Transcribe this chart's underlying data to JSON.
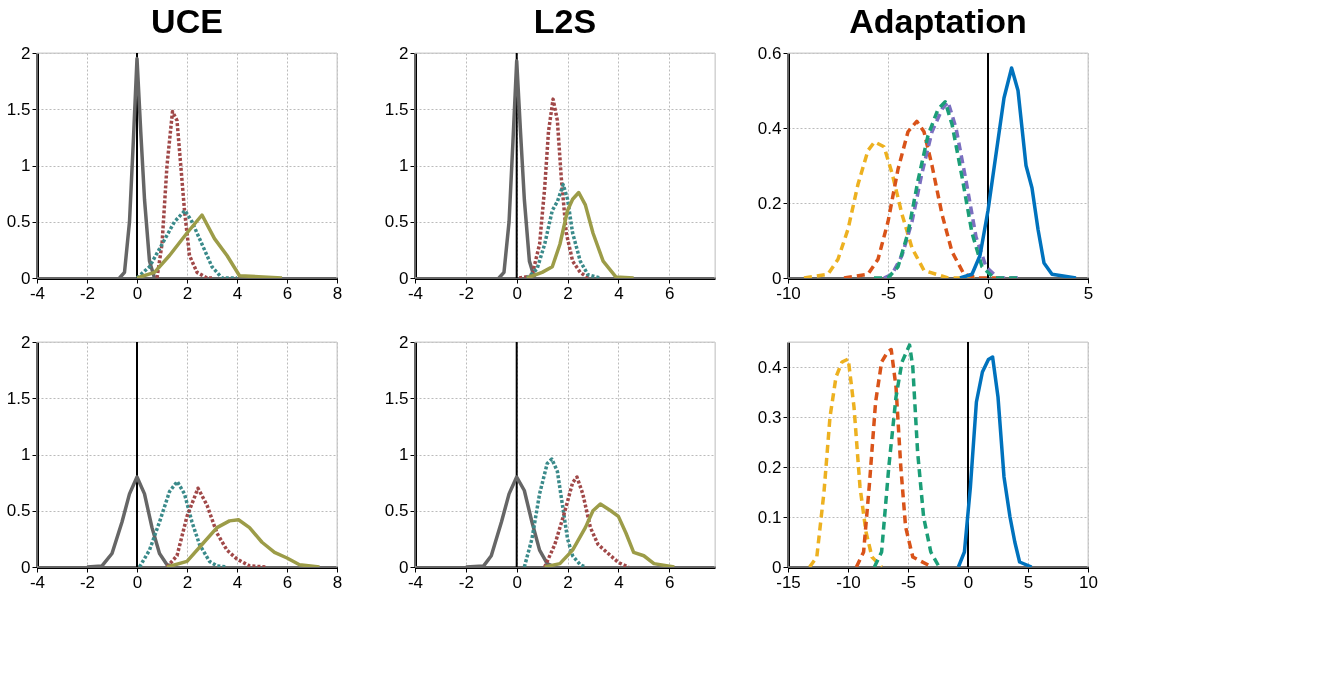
{
  "chart_data": [
    {
      "type": "line",
      "title": "UCE",
      "xlim": [
        -4,
        8
      ],
      "xticks": [
        -4,
        -2,
        0,
        2,
        4,
        6,
        8
      ],
      "ylim": [
        0,
        2
      ],
      "yticks": [
        0,
        0.5,
        1,
        1.5,
        2
      ],
      "grid": true,
      "ref_lines": [
        {
          "axis": "x",
          "value": 0,
          "color": "#000000"
        }
      ],
      "series": [
        {
          "color": "#666666",
          "line_style": "solid",
          "x": [
            -0.7,
            -0.5,
            -0.3,
            -0.15,
            0,
            0.15,
            0.3,
            0.5,
            0.7
          ],
          "values": [
            0,
            0.05,
            0.5,
            1.2,
            1.95,
            1.3,
            0.7,
            0.15,
            0
          ]
        },
        {
          "color": "#a04848",
          "line_style": "dotted",
          "x": [
            0.8,
            1.0,
            1.2,
            1.42,
            1.6,
            1.75,
            1.9,
            2.1,
            2.4,
            2.8,
            3.0
          ],
          "values": [
            0,
            0.3,
            1.0,
            1.48,
            1.4,
            1.0,
            0.6,
            0.2,
            0.05,
            0,
            0
          ]
        },
        {
          "color": "#3a8a8a",
          "line_style": "dotted",
          "x": [
            0,
            0.5,
            1,
            1.5,
            1.92,
            2.2,
            2.6,
            3,
            3.4,
            4
          ],
          "values": [
            0,
            0.1,
            0.3,
            0.5,
            0.6,
            0.5,
            0.3,
            0.1,
            0,
            0
          ]
        },
        {
          "color": "#9c9c48",
          "line_style": "solid",
          "x": [
            0,
            0.7,
            1.3,
            2,
            2.6,
            3.1,
            3.6,
            4.1,
            5.8
          ],
          "values": [
            0,
            0.05,
            0.2,
            0.4,
            0.56,
            0.35,
            0.2,
            0.02,
            0
          ]
        }
      ]
    },
    {
      "type": "line",
      "title": "L2S",
      "xlim": [
        -4,
        7.8
      ],
      "xticks": [
        -4,
        -2,
        0,
        2,
        4,
        6
      ],
      "ylim": [
        0,
        2
      ],
      "yticks": [
        0,
        0.5,
        1,
        1.5,
        2
      ],
      "grid": true,
      "ref_lines": [
        {
          "axis": "x",
          "value": 0,
          "color": "#000000"
        }
      ],
      "series": [
        {
          "color": "#666666",
          "line_style": "solid",
          "x": [
            -0.7,
            -0.5,
            -0.3,
            -0.15,
            0,
            0.15,
            0.3,
            0.5,
            0.7
          ],
          "values": [
            0,
            0.05,
            0.5,
            1.2,
            1.93,
            1.3,
            0.7,
            0.15,
            0
          ]
        },
        {
          "color": "#a04848",
          "line_style": "dotted",
          "x": [
            0.1,
            0.6,
            0.9,
            1.1,
            1.25,
            1.43,
            1.6,
            1.75,
            1.95,
            2.2,
            2.5,
            2.8
          ],
          "values": [
            0,
            0.02,
            0.3,
            0.8,
            1.3,
            1.59,
            1.4,
            0.9,
            0.4,
            0.15,
            0.05,
            0
          ]
        },
        {
          "color": "#3a8a8a",
          "line_style": "dotted",
          "x": [
            0.4,
            0.8,
            1.1,
            1.4,
            1.6,
            1.83,
            2.0,
            2.2,
            2.5,
            2.8,
            3.3
          ],
          "values": [
            0,
            0.08,
            0.3,
            0.6,
            0.68,
            0.83,
            0.7,
            0.4,
            0.15,
            0.03,
            0
          ]
        },
        {
          "color": "#9c9c48",
          "line_style": "solid",
          "x": [
            0.4,
            1.0,
            1.4,
            1.7,
            2.0,
            2.2,
            2.44,
            2.7,
            3.0,
            3.4,
            3.9,
            4.6
          ],
          "values": [
            0,
            0.05,
            0.1,
            0.3,
            0.6,
            0.7,
            0.76,
            0.65,
            0.4,
            0.15,
            0.01,
            0
          ]
        }
      ]
    },
    {
      "type": "line",
      "title": "Adaptation",
      "xlim": [
        -10,
        5
      ],
      "xticks": [
        -10,
        -5,
        0,
        5
      ],
      "ylim": [
        0,
        0.6
      ],
      "yticks": [
        0,
        0.2,
        0.4,
        0.6
      ],
      "grid": true,
      "ref_lines": [
        {
          "axis": "x",
          "value": 0,
          "color": "#000000"
        }
      ],
      "series": [
        {
          "color": "#edb120",
          "line_style": "dashed",
          "x": [
            -9.2,
            -8,
            -7.5,
            -7,
            -6.5,
            -6,
            -5.67,
            -5.2,
            -4.8,
            -4.3,
            -3.8,
            -3.2,
            -2,
            -0.5
          ],
          "values": [
            0,
            0.01,
            0.05,
            0.13,
            0.25,
            0.34,
            0.363,
            0.35,
            0.28,
            0.17,
            0.08,
            0.02,
            0,
            0
          ]
        },
        {
          "color": "#d95319",
          "line_style": "dashed",
          "x": [
            -7.2,
            -6,
            -5.5,
            -5,
            -4.5,
            -4,
            -3.56,
            -3.2,
            -2.8,
            -2.3,
            -1.8,
            -1.2,
            -0.5,
            0.7
          ],
          "values": [
            0,
            0.01,
            0.05,
            0.15,
            0.29,
            0.39,
            0.418,
            0.39,
            0.3,
            0.17,
            0.07,
            0.01,
            0,
            0
          ]
        },
        {
          "color": "#7b6fc0",
          "line_style": "dashed",
          "x": [
            -5.2,
            -4.8,
            -4.3,
            -3.8,
            -3.3,
            -2.8,
            -2.3,
            -2.0,
            -1.6,
            -1.1,
            -0.6,
            -0.1,
            0.5,
            1.5
          ],
          "values": [
            0,
            0.01,
            0.06,
            0.15,
            0.28,
            0.39,
            0.45,
            0.47,
            0.4,
            0.26,
            0.11,
            0.03,
            0,
            0
          ]
        },
        {
          "color": "#1b9e77",
          "line_style": "dashed",
          "x": [
            -5.7,
            -5,
            -4.5,
            -4,
            -3.5,
            -3,
            -2.5,
            -2.14,
            -1.8,
            -1.3,
            -0.8,
            -0.3,
            0.3,
            1.5
          ],
          "values": [
            0,
            0,
            0.03,
            0.12,
            0.26,
            0.38,
            0.45,
            0.47,
            0.41,
            0.27,
            0.12,
            0.03,
            0,
            0
          ]
        },
        {
          "color": "#0072bd",
          "line_style": "solid",
          "x": [
            -1.4,
            -0.8,
            -0.4,
            0,
            0.4,
            0.8,
            1.18,
            1.5,
            1.9,
            2.2,
            2.5,
            2.8,
            3.2,
            4.4
          ],
          "values": [
            0,
            0.01,
            0.06,
            0.18,
            0.33,
            0.48,
            0.56,
            0.5,
            0.3,
            0.24,
            0.13,
            0.04,
            0.01,
            0
          ]
        }
      ]
    },
    {
      "type": "line",
      "xlim": [
        -4,
        8
      ],
      "xticks": [
        -4,
        -2,
        0,
        2,
        4,
        6,
        8
      ],
      "ylim": [
        0,
        2
      ],
      "yticks": [
        0,
        0.5,
        1,
        1.5,
        2
      ],
      "grid": true,
      "ref_lines": [
        {
          "axis": "x",
          "value": 0,
          "color": "#000000"
        }
      ],
      "series": [
        {
          "color": "#666666",
          "line_style": "solid",
          "x": [
            -2,
            -1.4,
            -1,
            -0.6,
            -0.3,
            0,
            0.3,
            0.6,
            0.9,
            1.2,
            1.6
          ],
          "values": [
            0,
            0.01,
            0.12,
            0.4,
            0.65,
            0.8,
            0.65,
            0.35,
            0.12,
            0.02,
            0
          ]
        },
        {
          "color": "#3a8a8a",
          "line_style": "dotted",
          "x": [
            0.1,
            0.5,
            0.9,
            1.3,
            1.61,
            1.9,
            2.2,
            2.5,
            2.9,
            3.2,
            3.6
          ],
          "values": [
            0,
            0.15,
            0.4,
            0.67,
            0.76,
            0.65,
            0.4,
            0.2,
            0.05,
            0.01,
            0
          ]
        },
        {
          "color": "#a04848",
          "line_style": "dotted",
          "x": [
            1.2,
            1.6,
            2.0,
            2.44,
            2.8,
            3.2,
            3.6,
            4.0,
            4.5,
            5.2
          ],
          "values": [
            0,
            0.1,
            0.45,
            0.7,
            0.55,
            0.3,
            0.15,
            0.07,
            0.01,
            0
          ]
        },
        {
          "color": "#9c9c48",
          "line_style": "solid",
          "x": [
            1.2,
            2,
            2.6,
            3.2,
            3.7,
            4.06,
            4.5,
            5,
            5.5,
            6,
            6.5,
            7.3
          ],
          "values": [
            0,
            0.05,
            0.2,
            0.35,
            0.41,
            0.42,
            0.35,
            0.22,
            0.13,
            0.08,
            0.02,
            0
          ]
        }
      ]
    },
    {
      "type": "line",
      "xlim": [
        -4,
        7.8
      ],
      "xticks": [
        -4,
        -2,
        0,
        2,
        4,
        6
      ],
      "ylim": [
        0,
        2
      ],
      "yticks": [
        0,
        0.5,
        1,
        1.5,
        2
      ],
      "grid": true,
      "ref_lines": [
        {
          "axis": "x",
          "value": 0,
          "color": "#000000"
        }
      ],
      "series": [
        {
          "color": "#666666",
          "line_style": "solid",
          "x": [
            -2,
            -1.3,
            -1,
            -0.6,
            -0.3,
            0,
            0.3,
            0.6,
            0.9,
            1.2,
            1.5
          ],
          "values": [
            0,
            0.01,
            0.1,
            0.4,
            0.65,
            0.8,
            0.68,
            0.4,
            0.15,
            0.03,
            0
          ]
        },
        {
          "color": "#3a8a8a",
          "line_style": "dotted",
          "x": [
            0.3,
            0.6,
            0.9,
            1.2,
            1.38,
            1.6,
            1.8,
            2.0,
            2.2,
            2.5,
            2.7
          ],
          "values": [
            0,
            0.25,
            0.65,
            0.92,
            0.96,
            0.85,
            0.55,
            0.25,
            0.1,
            0.02,
            0
          ]
        },
        {
          "color": "#a04848",
          "line_style": "dotted",
          "x": [
            1.1,
            1.5,
            1.9,
            2.2,
            2.37,
            2.6,
            2.9,
            3.2,
            3.6,
            4.0,
            4.4
          ],
          "values": [
            0,
            0.2,
            0.5,
            0.75,
            0.8,
            0.65,
            0.35,
            0.2,
            0.12,
            0.04,
            0
          ]
        },
        {
          "color": "#9c9c48",
          "line_style": "solid",
          "x": [
            1.1,
            1.7,
            2.2,
            2.7,
            3.0,
            3.29,
            3.7,
            4.0,
            4.3,
            4.6,
            5.0,
            5.4,
            6.2
          ],
          "values": [
            0,
            0.03,
            0.15,
            0.35,
            0.5,
            0.56,
            0.5,
            0.45,
            0.3,
            0.13,
            0.1,
            0.03,
            0
          ]
        }
      ]
    },
    {
      "type": "line",
      "xlim": [
        -15,
        10
      ],
      "xticks": [
        -15,
        -10,
        -5,
        0,
        5,
        10
      ],
      "ylim": [
        0,
        0.45
      ],
      "yticks": [
        0,
        0.1,
        0.2,
        0.3,
        0.4
      ],
      "grid": true,
      "ref_lines": [
        {
          "axis": "x",
          "value": 0,
          "color": "#000000"
        }
      ],
      "series": [
        {
          "color": "#edb120",
          "line_style": "dashed",
          "x": [
            -13.2,
            -12.6,
            -12,
            -11.5,
            -11,
            -10.5,
            -9.98,
            -9.5,
            -9.0,
            -8.5,
            -8,
            -7.2
          ],
          "values": [
            0,
            0.02,
            0.15,
            0.3,
            0.38,
            0.41,
            0.416,
            0.32,
            0.16,
            0.07,
            0.02,
            0
          ]
        },
        {
          "color": "#d95319",
          "line_style": "dashed",
          "x": [
            -9.3,
            -8.7,
            -8.2,
            -7.7,
            -7.2,
            -6.7,
            -6.4,
            -6.0,
            -5.6,
            -5.2,
            -4.6,
            -3.0
          ],
          "values": [
            0,
            0.03,
            0.17,
            0.33,
            0.41,
            0.43,
            0.435,
            0.36,
            0.2,
            0.08,
            0.02,
            0
          ]
        },
        {
          "color": "#1b9e77",
          "line_style": "dashed",
          "x": [
            -7.8,
            -7.2,
            -6.6,
            -6.0,
            -5.5,
            -4.87,
            -4.6,
            -4.2,
            -3.7,
            -3.1,
            -2.4
          ],
          "values": [
            0,
            0.03,
            0.2,
            0.34,
            0.41,
            0.444,
            0.4,
            0.23,
            0.1,
            0.03,
            0
          ]
        },
        {
          "color": "#0072bd",
          "line_style": "solid",
          "x": [
            -0.8,
            -0.3,
            0.2,
            0.7,
            1.2,
            1.7,
            2.05,
            2.5,
            3.0,
            3.5,
            3.9,
            4.3,
            5.3
          ],
          "values": [
            0,
            0.03,
            0.16,
            0.33,
            0.39,
            0.415,
            0.42,
            0.34,
            0.18,
            0.1,
            0.05,
            0.01,
            0
          ]
        }
      ]
    }
  ]
}
